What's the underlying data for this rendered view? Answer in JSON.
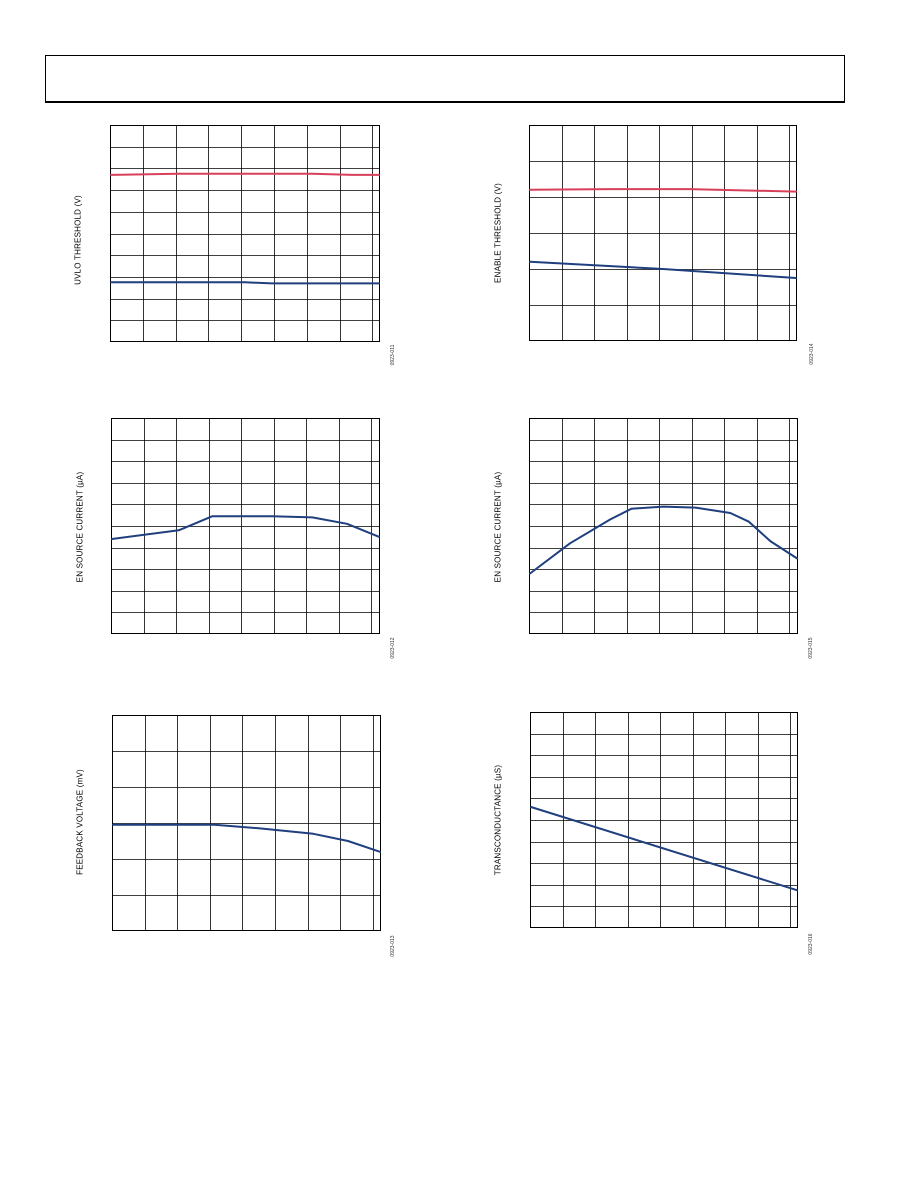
{
  "header": {
    "title": ""
  },
  "colors": {
    "blue": "#1f3f7f",
    "red": "#d8405a",
    "grid": "#000000"
  },
  "chart_data": [
    {
      "type": "line",
      "ylabel": "UVLO THRESHOLD (V)",
      "figure_id": "0923-011",
      "y_range": [
        0,
        10
      ],
      "grid": true,
      "series": [
        {
          "color": "red",
          "x": [
            0,
            0.25,
            0.5,
            0.75,
            0.9,
            1
          ],
          "y": [
            7.7,
            7.75,
            7.75,
            7.75,
            7.7,
            7.7
          ]
        },
        {
          "color": "blue",
          "x": [
            0,
            0.25,
            0.5,
            0.6,
            0.85,
            1
          ],
          "y": [
            2.75,
            2.75,
            2.75,
            2.7,
            2.7,
            2.7
          ]
        }
      ]
    },
    {
      "type": "line",
      "ylabel": "ENABLE THRESHOLD (V)",
      "figure_id": "0923-014",
      "y_range": [
        0,
        6
      ],
      "grid": true,
      "series": [
        {
          "color": "red",
          "x": [
            0,
            0.3,
            0.6,
            1
          ],
          "y": [
            4.2,
            4.22,
            4.22,
            4.15
          ]
        },
        {
          "color": "blue",
          "x": [
            0,
            0.5,
            1
          ],
          "y": [
            2.2,
            2.0,
            1.75
          ]
        }
      ]
    },
    {
      "type": "line",
      "ylabel": "EN SOURCE CURRENT (µA)",
      "figure_id": "0923-012",
      "y_range": [
        0,
        10
      ],
      "grid": true,
      "series": [
        {
          "color": "blue",
          "x": [
            0,
            0.25,
            0.375,
            0.6,
            0.75,
            0.88,
            1
          ],
          "y": [
            4.4,
            4.8,
            5.45,
            5.45,
            5.4,
            5.1,
            4.5
          ]
        }
      ]
    },
    {
      "type": "line",
      "ylabel": "EN SOURCE CURRENT (µA)",
      "figure_id": "0923-015",
      "y_range": [
        0,
        10
      ],
      "grid": true,
      "series": [
        {
          "color": "blue",
          "x": [
            0,
            0.15,
            0.3,
            0.38,
            0.5,
            0.62,
            0.75,
            0.82,
            0.9,
            1
          ],
          "y": [
            2.8,
            4.2,
            5.3,
            5.8,
            5.9,
            5.85,
            5.6,
            5.2,
            4.3,
            3.5
          ]
        }
      ]
    },
    {
      "type": "line",
      "ylabel": "FEEDBACK VOLTAGE (mV)",
      "figure_id": "0923-013",
      "y_range": [
        0,
        6
      ],
      "grid": true,
      "series": [
        {
          "color": "blue",
          "x": [
            0,
            0.38,
            0.55,
            0.75,
            0.88,
            1
          ],
          "y": [
            2.95,
            2.95,
            2.85,
            2.7,
            2.5,
            2.2
          ]
        }
      ]
    },
    {
      "type": "line",
      "ylabel": "TRANSCONDUCTANCE (µS)",
      "figure_id": "0923-016",
      "y_range": [
        0,
        10
      ],
      "grid": true,
      "series": [
        {
          "color": "blue",
          "x": [
            0,
            1
          ],
          "y": [
            5.6,
            1.75
          ]
        }
      ]
    }
  ]
}
